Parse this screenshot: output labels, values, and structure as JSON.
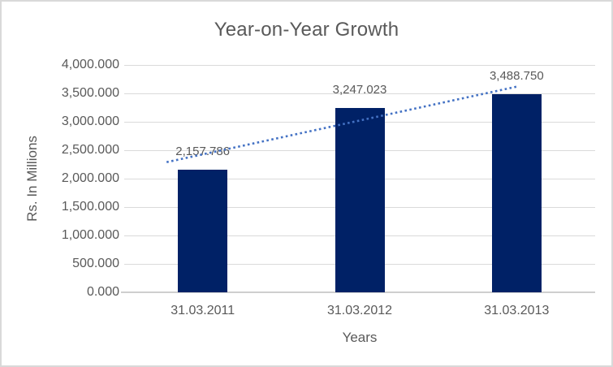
{
  "chart_data": {
    "type": "bar",
    "title": "Year-on-Year Growth",
    "xlabel": "Years",
    "ylabel": "Rs. In Millions",
    "categories": [
      "31.03.2011",
      "31.03.2012",
      "31.03.2013"
    ],
    "values": [
      2157.786,
      3247.023,
      3488.75
    ],
    "data_labels": [
      "2,157.786",
      "3,247.023",
      "3,488.750"
    ],
    "y_ticks": [
      "0.000",
      "500.000",
      "1,000.000",
      "1,500.000",
      "2,000.000",
      "2,500.000",
      "3,000.000",
      "3,500.000",
      "4,000.000"
    ],
    "ylim": [
      0,
      4000
    ],
    "y_tick_step": 500,
    "grid": true,
    "legend": false,
    "trendline": {
      "type": "linear",
      "style": "dotted",
      "start_value": 2290,
      "end_value": 3618,
      "color": "#4472C4"
    },
    "colors": {
      "bar": "#002166",
      "trendline": "#4472C4",
      "gridline": "#DADADA",
      "axis_line": "#CFCFCF",
      "text": "#595959",
      "background": "#FFFFFF",
      "border": "#D9D9D9"
    }
  }
}
